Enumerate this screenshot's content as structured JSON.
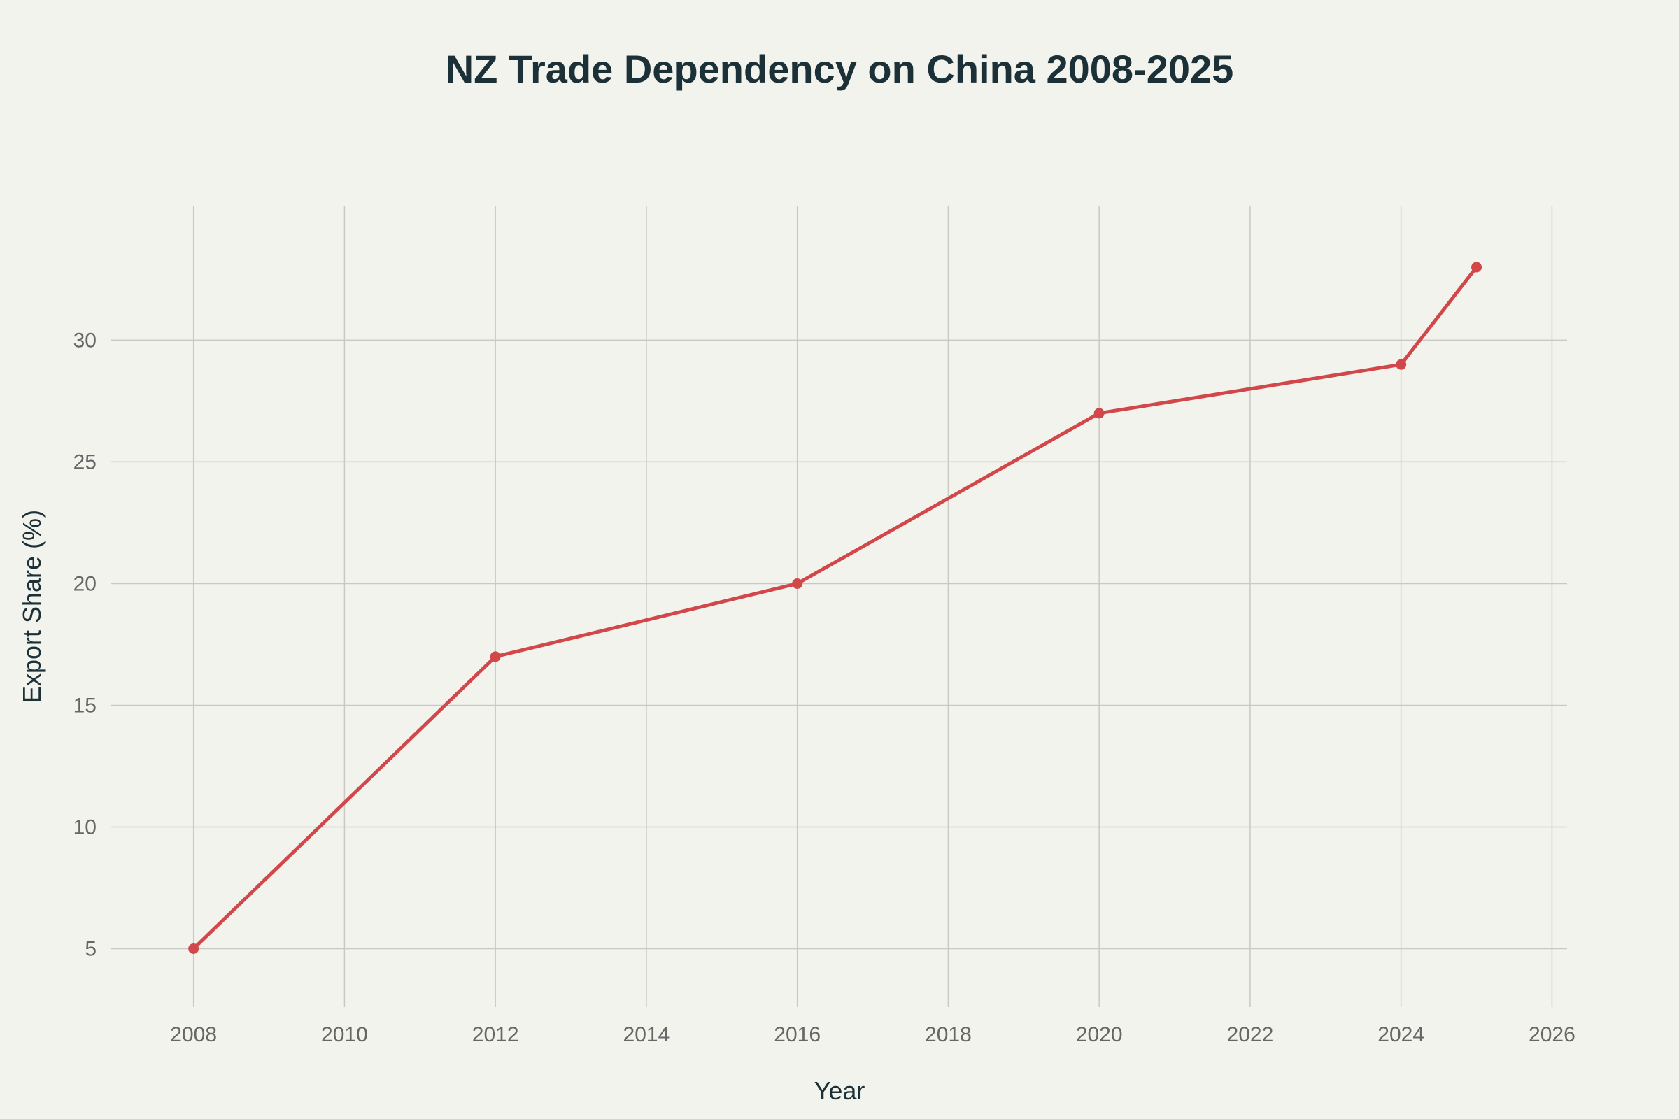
{
  "chart_data": {
    "type": "line",
    "title": "NZ Trade Dependency on China 2008-2025",
    "xlabel": "Year",
    "ylabel": "Export Share (%)",
    "x": [
      2008,
      2012,
      2016,
      2020,
      2024,
      2025
    ],
    "series": [
      {
        "values": [
          5,
          17,
          20,
          27,
          29,
          33
        ],
        "color": "#d1474a"
      }
    ],
    "xlim": [
      2006.9,
      2026.2
    ],
    "ylim": [
      2.6,
      35.5
    ],
    "x_ticks": [
      2008,
      2010,
      2012,
      2014,
      2016,
      2018,
      2020,
      2022,
      2024,
      2026
    ],
    "y_ticks": [
      5,
      10,
      15,
      20,
      25,
      30
    ],
    "grid": true,
    "legend": "none",
    "background": "#f3f3ee"
  }
}
